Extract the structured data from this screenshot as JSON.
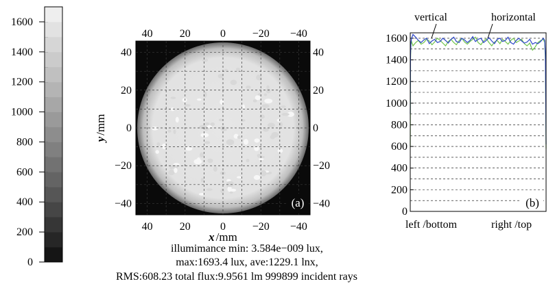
{
  "colorbar": {
    "ticks": [
      "1600",
      "1400",
      "1200",
      "1000",
      "800",
      "600",
      "400",
      "200",
      "0"
    ],
    "tick_values": [
      1600,
      1400,
      1200,
      1000,
      800,
      600,
      400,
      200,
      0
    ],
    "min": 0,
    "max": 1700,
    "levels": 17,
    "colors": [
      "#151515",
      "#262626",
      "#363636",
      "#464646",
      "#565656",
      "#646464",
      "#727272",
      "#808080",
      "#8d8d8d",
      "#9a9a9a",
      "#a7a7a7",
      "#b4b4b4",
      "#c0c0c0",
      "#cbcbcb",
      "#d6d6d6",
      "#e2e2e2",
      "#eeeeee"
    ]
  },
  "map_a": {
    "x_axis_label": "x",
    "x_axis_unit": "/mm",
    "y_axis_label": "y",
    "y_axis_unit": "/mm",
    "x_ticks_bottom": [
      "40",
      "20",
      "0",
      "−20",
      "−40"
    ],
    "x_ticks_top": [
      "40",
      "20",
      "0",
      "−20",
      "−40"
    ],
    "y_ticks_left": [
      "40",
      "20",
      "0",
      "−20",
      "−40"
    ],
    "y_ticks_right": [
      "40",
      "20",
      "0",
      "−20",
      "−40"
    ],
    "x_tick_values": [
      40,
      20,
      0,
      -20,
      -40
    ],
    "y_tick_values": [
      40,
      20,
      0,
      -20,
      -40
    ],
    "x_range": [
      46,
      -46
    ],
    "y_range": [
      -46,
      46
    ],
    "spot_radius_mm": 45,
    "panel_tag": "(a)",
    "colors": {
      "background": "#0a0a0a",
      "spot": "#e6e6e6",
      "speckle": "#f7f7f7",
      "edge": "#7a7a7a"
    }
  },
  "caption": {
    "line1": "illumimance min: 3.584e−009 lux,",
    "line2": "max:1693.4 lux, ave:1229.1 lnx,",
    "line3": "RMS:608.23 total flux:9.9561 lm 999899 incident rays"
  },
  "chart_data": [
    {
      "type": "heatmap",
      "title": "",
      "xlabel": "x /mm",
      "ylabel": "y /mm",
      "xlim": [
        46,
        -46
      ],
      "ylim": [
        -46,
        46
      ],
      "x_ticks": [
        40,
        20,
        0,
        -20,
        -40
      ],
      "y_ticks": [
        40,
        20,
        0,
        -20,
        -40
      ],
      "colorbar_ticks": [
        0,
        200,
        400,
        600,
        800,
        1000,
        1200,
        1400,
        1600
      ],
      "annotations": [
        "(a)"
      ],
      "grid": true
    },
    {
      "type": "line",
      "title": "",
      "xlabel_left": "left /bottom",
      "xlabel_right": "right /top",
      "ylabel": "",
      "ylim": [
        0,
        1650
      ],
      "y_ticks": [
        0,
        200,
        400,
        600,
        800,
        1000,
        1200,
        1400,
        1600
      ],
      "y_tick_labels": [
        "0",
        "200",
        "400",
        "600",
        "800",
        "1000",
        "1200",
        "1400",
        "1600"
      ],
      "grid": true,
      "annotations": [
        "vertical",
        "horizontal",
        "(b)"
      ],
      "x": [
        0,
        0.2,
        0.5,
        1,
        2,
        4,
        6,
        8,
        10,
        12,
        14,
        16,
        18,
        20,
        22,
        24,
        26,
        28,
        30,
        32,
        34,
        36,
        38,
        40,
        42,
        44,
        46,
        48,
        50,
        52,
        54,
        56,
        58,
        60,
        62,
        64,
        66,
        68,
        70,
        72,
        74,
        76,
        78,
        80,
        82,
        84,
        86,
        88,
        90,
        92,
        94,
        96,
        98,
        99,
        99.5,
        99.8,
        100
      ],
      "series": [
        {
          "name": "vertical",
          "color": "#2b45c8",
          "values": [
            900,
            1450,
            1560,
            1600,
            1635,
            1610,
            1580,
            1560,
            1585,
            1600,
            1550,
            1575,
            1590,
            1560,
            1570,
            1600,
            1580,
            1555,
            1590,
            1610,
            1570,
            1560,
            1600,
            1585,
            1560,
            1580,
            1615,
            1570,
            1590,
            1600,
            1560,
            1580,
            1605,
            1575,
            1550,
            1590,
            1600,
            1570,
            1580,
            1610,
            1560,
            1545,
            1580,
            1600,
            1575,
            1555,
            1565,
            1590,
            1545,
            1560,
            1550,
            1570,
            1600,
            1580,
            1450,
            1000,
            620
          ]
        },
        {
          "name": "horizontal",
          "color": "#6fc34a",
          "values": [
            600,
            1400,
            1540,
            1570,
            1530,
            1560,
            1580,
            1545,
            1560,
            1590,
            1575,
            1540,
            1565,
            1600,
            1580,
            1555,
            1530,
            1570,
            1590,
            1560,
            1540,
            1580,
            1600,
            1565,
            1545,
            1570,
            1590,
            1610,
            1560,
            1540,
            1575,
            1595,
            1560,
            1530,
            1565,
            1580,
            1550,
            1590,
            1570,
            1545,
            1580,
            1600,
            1560,
            1575,
            1590,
            1550,
            1530,
            1555,
            1490,
            1520,
            1560,
            1580,
            1590,
            1560,
            1400,
            900,
            580
          ]
        }
      ]
    }
  ]
}
